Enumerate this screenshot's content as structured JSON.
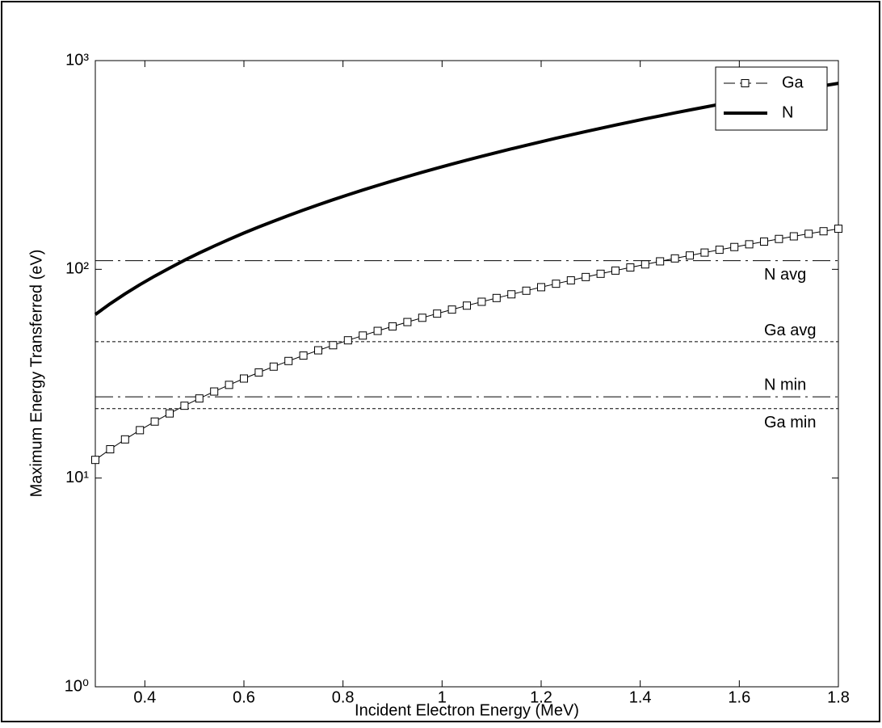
{
  "chart_data": {
    "type": "line",
    "x_label": "Incident Electron Energy (MeV)",
    "y_label": "Maximum Energy Transferred (eV)",
    "y_scale": "log",
    "xlim": [
      0.3,
      1.8
    ],
    "xticks": [
      0.4,
      0.6,
      0.8,
      1,
      1.2,
      1.4,
      1.6,
      1.8
    ],
    "ylim": [
      1,
      1000
    ],
    "yticks": [
      {
        "value": 1,
        "label": "10⁰"
      },
      {
        "value": 10,
        "label": "10¹"
      },
      {
        "value": 100,
        "label": "10²"
      },
      {
        "value": 1000,
        "label": "10³"
      }
    ],
    "legend_position": "upper-right",
    "x": [
      0.3,
      0.33,
      0.36,
      0.39,
      0.42,
      0.45,
      0.48,
      0.51,
      0.54,
      0.57,
      0.6,
      0.63,
      0.66,
      0.69,
      0.72,
      0.75,
      0.78,
      0.81,
      0.84,
      0.87,
      0.9,
      0.93,
      0.96,
      0.99,
      1.02,
      1.05,
      1.08,
      1.11,
      1.14,
      1.17,
      1.2,
      1.23,
      1.26,
      1.29,
      1.32,
      1.35,
      1.38,
      1.41,
      1.44,
      1.47,
      1.5,
      1.53,
      1.56,
      1.59,
      1.62,
      1.65,
      1.68,
      1.71,
      1.74,
      1.77,
      1.8
    ],
    "series": [
      {
        "name": "Ga",
        "color": "#000000",
        "marker": "square",
        "line_width": 1,
        "values": [
          12.22,
          13.74,
          15.32,
          16.96,
          18.65,
          20.4,
          22.21,
          24.06,
          25.98,
          27.95,
          29.98,
          32.06,
          34.19,
          36.38,
          38.63,
          40.93,
          43.29,
          45.7,
          48.17,
          50.7,
          53.28,
          55.91,
          58.6,
          61.35,
          64.15,
          67.01,
          69.92,
          72.89,
          75.91,
          78.99,
          82.13,
          85.31,
          88.56,
          91.86,
          95.22,
          98.63,
          102.1,
          105.6,
          109.2,
          112.8,
          116.5,
          120.3,
          124.1,
          127.9,
          131.8,
          135.8,
          139.8,
          143.9,
          148,
          152.2,
          156.5
        ]
      },
      {
        "name": "N",
        "color": "#000000",
        "marker": "none",
        "line_width": 4,
        "values": [
          60.8,
          68.4,
          76.27,
          84.42,
          92.84,
          101.5,
          110.5,
          119.8,
          129.3,
          139.1,
          149.2,
          159.6,
          170.2,
          181.1,
          192.3,
          203.7,
          215.5,
          227.5,
          239.8,
          252.3,
          265.2,
          278.3,
          291.7,
          305.4,
          319.3,
          333.5,
          348,
          362.8,
          377.8,
          393.1,
          408.8,
          424.6,
          440.8,
          457.2,
          473.9,
          490.9,
          508.2,
          525.7,
          543.5,
          561.6,
          579.9,
          598.6,
          617.5,
          636.7,
          656.1,
          675.9,
          695.9,
          716.2,
          736.7,
          757.6,
          778.7
        ]
      }
    ],
    "reference_lines": [
      {
        "name": "N avg",
        "value": 110,
        "style": "dashdot"
      },
      {
        "name": "Ga avg",
        "value": 45,
        "style": "dotted"
      },
      {
        "name": "N min",
        "value": 24.5,
        "style": "dashdot"
      },
      {
        "name": "Ga min",
        "value": 21.5,
        "style": "dotted"
      }
    ]
  }
}
